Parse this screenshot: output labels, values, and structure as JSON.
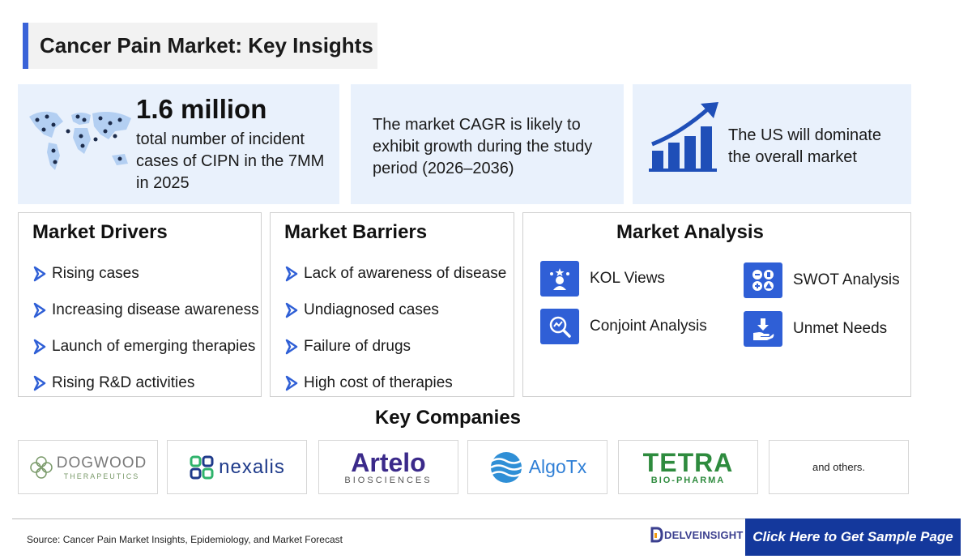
{
  "title": "Cancer Pain Market: Key Insights",
  "stats": [
    {
      "value": "1.6 million",
      "text": "total number of incident cases of CIPN in the 7MM in 2025",
      "icon": "world-map-icon"
    },
    {
      "text": "The market CAGR is likely to exhibit growth during the study period (2026–2036)"
    },
    {
      "text": "The US will dominate the overall market",
      "icon": "growth-chart-icon"
    }
  ],
  "drivers": {
    "title": "Market Drivers",
    "items": [
      "Rising cases",
      "Increasing disease awareness",
      "Launch of emerging therapies",
      "Rising R&D activities"
    ]
  },
  "barriers": {
    "title": "Market Barriers",
    "items": [
      "Lack of awareness of disease",
      "Undiagnosed cases",
      "Failure of drugs",
      "High cost of therapies"
    ]
  },
  "analysis": {
    "title": "Market Analysis",
    "items": [
      {
        "label": "KOL Views",
        "icon": "kol-icon"
      },
      {
        "label": "SWOT Analysis",
        "icon": "swot-icon"
      },
      {
        "label": "Conjoint Analysis",
        "icon": "conjoint-icon"
      },
      {
        "label": "Unmet Needs",
        "icon": "unmet-needs-icon"
      }
    ]
  },
  "companies": {
    "title": "Key Companies",
    "logos": [
      {
        "name": "DOGWOOD",
        "sub": "THERAPEUTICS"
      },
      {
        "name": "nexalis"
      },
      {
        "name": "Artelo",
        "sub": "BIOSCIENCES"
      },
      {
        "name": "AlgoTx"
      },
      {
        "name": "TETRA",
        "sub": "BIO-PHARMA"
      }
    ],
    "others": "and others."
  },
  "footer": {
    "source": "Source: Cancer Pain Market Insights, Epidemiology, and Market Forecast",
    "brand": "DELVEINSIGHT",
    "cta": "Click Here to Get Sample Page"
  },
  "colors": {
    "accent": "#3a63d8",
    "icon_blue": "#2f5fd6",
    "panel": "#e9f1fc",
    "cta": "#14389c"
  }
}
